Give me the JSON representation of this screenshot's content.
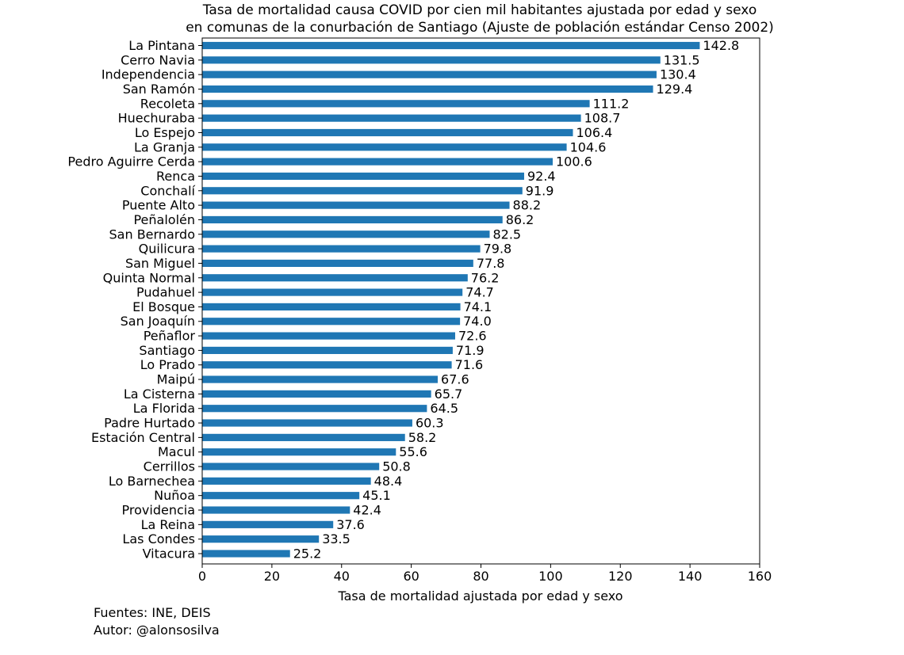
{
  "chart_data": {
    "type": "bar",
    "orientation": "horizontal",
    "title": [
      "Tasa de mortalidad causa COVID por cien mil habitantes ajustada por edad y sexo",
      "en comunas de la conurbación de Santiago (Ajuste de población estándar Censo 2002)"
    ],
    "xlabel": "Tasa de mortalidad ajustada por edad y sexo",
    "ylabel": "",
    "xlim": [
      0,
      160
    ],
    "xticks": [
      "0",
      "20",
      "40",
      "60",
      "80",
      "100",
      "120",
      "140",
      "160"
    ],
    "grid": false,
    "bar_color": "#1f77b4",
    "categories": [
      "La Pintana",
      "Cerro Navia",
      "Independencia",
      "San Ramón",
      "Recoleta",
      "Huechuraba",
      "Lo Espejo",
      "La Granja",
      "Pedro Aguirre Cerda",
      "Renca",
      "Conchalí",
      "Puente Alto",
      "Peñalolén",
      "San Bernardo",
      "Quilicura",
      "San Miguel",
      "Quinta Normal",
      "Pudahuel",
      "El Bosque",
      "San Joaquín",
      "Peñaflor",
      "Santiago",
      "Lo Prado",
      "Maipú",
      "La Cisterna",
      "La Florida",
      "Padre Hurtado",
      "Estación Central",
      "Macul",
      "Cerrillos",
      "Lo Barnechea",
      "Nuñoa",
      "Providencia",
      "La Reina",
      "Las Condes",
      "Vitacura"
    ],
    "values": [
      142.8,
      131.5,
      130.4,
      129.4,
      111.2,
      108.7,
      106.4,
      104.6,
      100.6,
      92.4,
      91.9,
      88.2,
      86.2,
      82.5,
      79.8,
      77.8,
      76.2,
      74.7,
      74.1,
      74.0,
      72.6,
      71.9,
      71.6,
      67.6,
      65.7,
      64.5,
      60.3,
      58.2,
      55.6,
      50.8,
      48.4,
      45.1,
      42.4,
      37.6,
      33.5,
      25.2
    ],
    "value_labels": [
      "142.8",
      "131.5",
      "130.4",
      "129.4",
      "111.2",
      "108.7",
      "106.4",
      "104.6",
      "100.6",
      "92.4",
      "91.9",
      "88.2",
      "86.2",
      "82.5",
      "79.8",
      "77.8",
      "76.2",
      "74.7",
      "74.1",
      "74.0",
      "72.6",
      "71.9",
      "71.6",
      "67.6",
      "65.7",
      "64.5",
      "60.3",
      "58.2",
      "55.6",
      "50.8",
      "48.4",
      "45.1",
      "42.4",
      "37.6",
      "33.5",
      "25.2"
    ]
  },
  "footer": {
    "sources": "Fuentes: INE, DEIS",
    "author": "Autor: @alonsosilva"
  }
}
